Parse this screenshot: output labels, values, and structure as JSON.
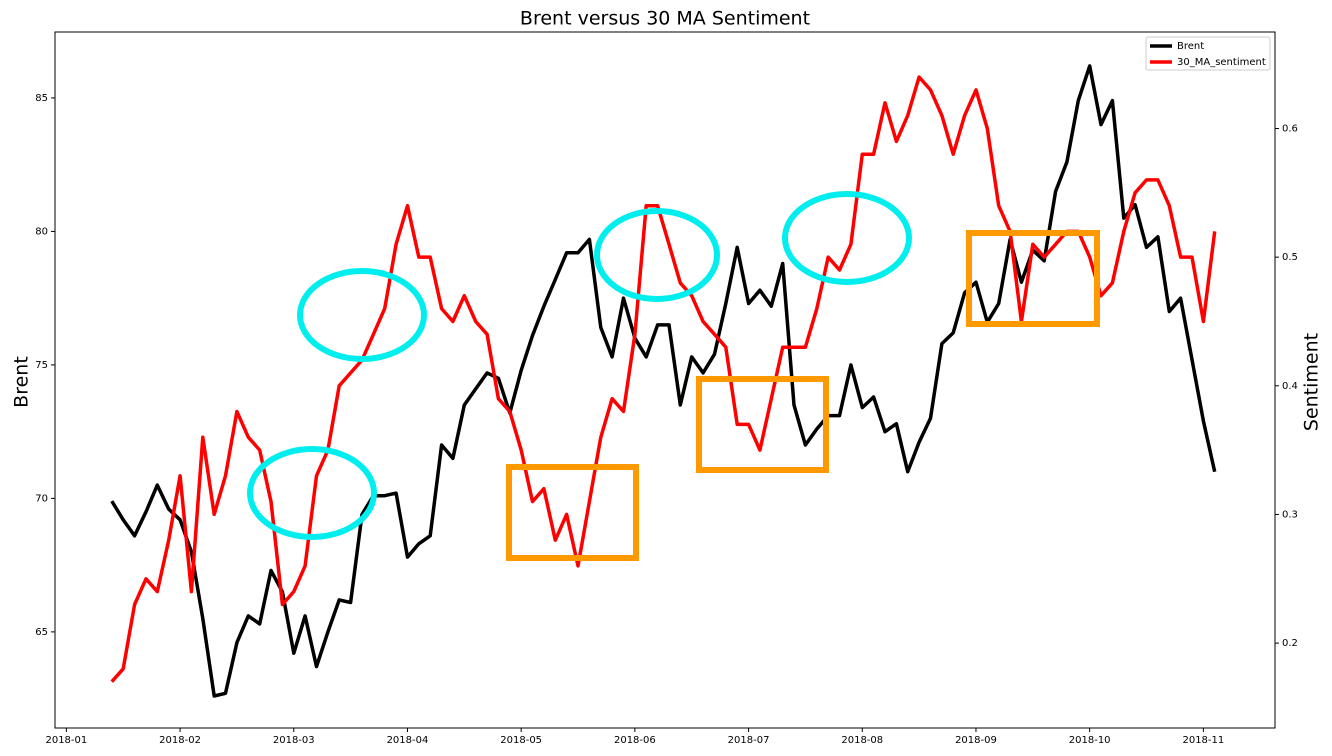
{
  "chart_data": {
    "type": "line",
    "title": "Brent versus 30 MA Sentiment",
    "ylabel": "Brent",
    "y2label": "Sentiment",
    "x": [
      1.4,
      1.5,
      1.6,
      1.7,
      1.8,
      1.9,
      2.0,
      2.1,
      2.2,
      2.3,
      2.4,
      2.5,
      2.6,
      2.7,
      2.8,
      2.9,
      3.0,
      3.1,
      3.2,
      3.3,
      3.4,
      3.5,
      3.6,
      3.7,
      3.8,
      3.9,
      4.0,
      4.1,
      4.2,
      4.3,
      4.4,
      4.5,
      4.6,
      4.7,
      4.8,
      4.9,
      5.0,
      5.1,
      5.2,
      5.3,
      5.4,
      5.5,
      5.6,
      5.7,
      5.8,
      5.9,
      6.0,
      6.1,
      6.2,
      6.3,
      6.4,
      6.5,
      6.6,
      6.7,
      6.8,
      6.9,
      7.0,
      7.1,
      7.2,
      7.3,
      7.4,
      7.5,
      7.6,
      7.7,
      7.8,
      7.9,
      8.0,
      8.1,
      8.2,
      8.3,
      8.4,
      8.5,
      8.6,
      8.7,
      8.8,
      8.9,
      9.0,
      9.1,
      9.2,
      9.3,
      9.4,
      9.5,
      9.6,
      9.7,
      9.8,
      9.9,
      10.0,
      10.1,
      10.2,
      10.3,
      10.4,
      10.5,
      10.6,
      10.7,
      10.8,
      10.9,
      11.0,
      11.1
    ],
    "series": [
      {
        "name": "Brent",
        "color": "#000000",
        "values": [
          69.9,
          69.2,
          68.6,
          69.5,
          70.5,
          69.6,
          69.2,
          68.0,
          65.5,
          62.6,
          62.7,
          64.6,
          65.6,
          65.3,
          67.3,
          66.5,
          64.2,
          65.6,
          63.7,
          65.0,
          66.2,
          66.1,
          69.4,
          70.1,
          70.1,
          70.2,
          67.8,
          68.3,
          68.6,
          72.0,
          71.5,
          73.5,
          74.1,
          74.7,
          74.5,
          73.2,
          74.8,
          76.1,
          77.2,
          78.2,
          79.2,
          79.2,
          79.7,
          76.4,
          75.3,
          77.5,
          76.0,
          75.3,
          76.5,
          76.5,
          73.5,
          75.3,
          74.7,
          75.4,
          77.3,
          79.4,
          77.3,
          77.8,
          77.2,
          78.8,
          73.5,
          72.0,
          72.6,
          73.1,
          73.1,
          75.0,
          73.4,
          73.8,
          72.5,
          72.8,
          71.0,
          72.1,
          73.0,
          75.8,
          76.2,
          77.7,
          78.1,
          76.6,
          77.3,
          79.7,
          78.1,
          79.3,
          78.9,
          81.5,
          82.6,
          84.9,
          86.2,
          84.0,
          84.9,
          80.5,
          81.0,
          79.4,
          79.8,
          77.0,
          77.5,
          75.2,
          72.9,
          71.0
        ]
      },
      {
        "name": "30_MA_sentiment",
        "color": "#ff0000",
        "axis": "y2",
        "values": [
          0.17,
          0.18,
          0.23,
          0.25,
          0.24,
          0.28,
          0.33,
          0.24,
          0.36,
          0.3,
          0.33,
          0.38,
          0.36,
          0.35,
          0.31,
          0.23,
          0.24,
          0.26,
          0.33,
          0.35,
          0.4,
          0.41,
          0.42,
          0.44,
          0.46,
          0.51,
          0.54,
          0.5,
          0.5,
          0.46,
          0.45,
          0.47,
          0.45,
          0.44,
          0.39,
          0.38,
          0.35,
          0.31,
          0.32,
          0.28,
          0.3,
          0.26,
          0.31,
          0.36,
          0.39,
          0.38,
          0.44,
          0.54,
          0.54,
          0.51,
          0.48,
          0.47,
          0.45,
          0.44,
          0.43,
          0.37,
          0.37,
          0.35,
          0.39,
          0.43,
          0.43,
          0.43,
          0.46,
          0.5,
          0.49,
          0.51,
          0.58,
          0.58,
          0.62,
          0.59,
          0.61,
          0.64,
          0.63,
          0.61,
          0.58,
          0.61,
          0.63,
          0.6,
          0.54,
          0.52,
          0.45,
          0.51,
          0.5,
          0.51,
          0.52,
          0.52,
          0.5,
          0.47,
          0.48,
          0.52,
          0.55,
          0.56,
          0.56,
          0.54,
          0.5,
          0.5,
          0.45,
          0.52
        ]
      }
    ],
    "xlim": [
      0.9,
      11.63
    ],
    "xticks": [
      {
        "value": 1,
        "label": "2018-01"
      },
      {
        "value": 2,
        "label": "2018-02"
      },
      {
        "value": 3,
        "label": "2018-03"
      },
      {
        "value": 4,
        "label": "2018-04"
      },
      {
        "value": 5,
        "label": "2018-05"
      },
      {
        "value": 6,
        "label": "2018-06"
      },
      {
        "value": 7,
        "label": "2018-07"
      },
      {
        "value": 8,
        "label": "2018-08"
      },
      {
        "value": 9,
        "label": "2018-09"
      },
      {
        "value": 10,
        "label": "2018-10"
      },
      {
        "value": 11,
        "label": "2018-11"
      }
    ],
    "ylim": [
      61.4,
      87.47
    ],
    "yticks": [
      65,
      70,
      75,
      80,
      85
    ],
    "y2lim": [
      0.134,
      0.675
    ],
    "y2ticks": [
      0.2,
      0.3,
      0.4,
      0.5,
      0.6
    ],
    "legend": "upper right",
    "grid": false
  }
}
